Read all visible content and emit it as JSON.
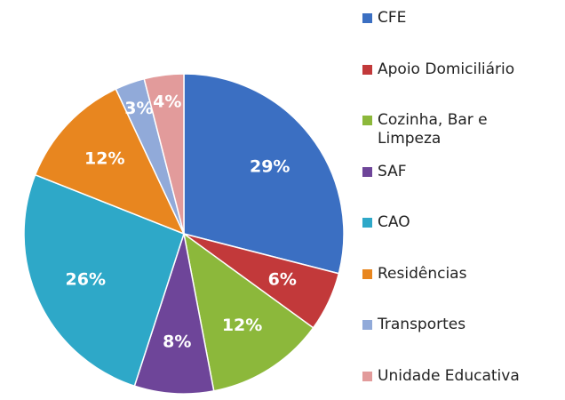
{
  "chart_data": {
    "type": "pie",
    "categories": [
      "CFE",
      "Apoio Domiciliário",
      "Cozinha, Bar e Limpeza",
      "SAF",
      "CAO",
      "Residências",
      "Transportes",
      "Unidade Educativa"
    ],
    "values": [
      29,
      6,
      12,
      8,
      26,
      12,
      3,
      4
    ],
    "value_labels": [
      "29%",
      "6%",
      "12%",
      "8%",
      "26%",
      "12%",
      "3%",
      "4%"
    ],
    "colors": [
      "#3b6fc2",
      "#c2393a",
      "#8cb83b",
      "#6e4599",
      "#2ea8c8",
      "#e8861f",
      "#91aad9",
      "#e29b9b"
    ],
    "legend": "right"
  }
}
